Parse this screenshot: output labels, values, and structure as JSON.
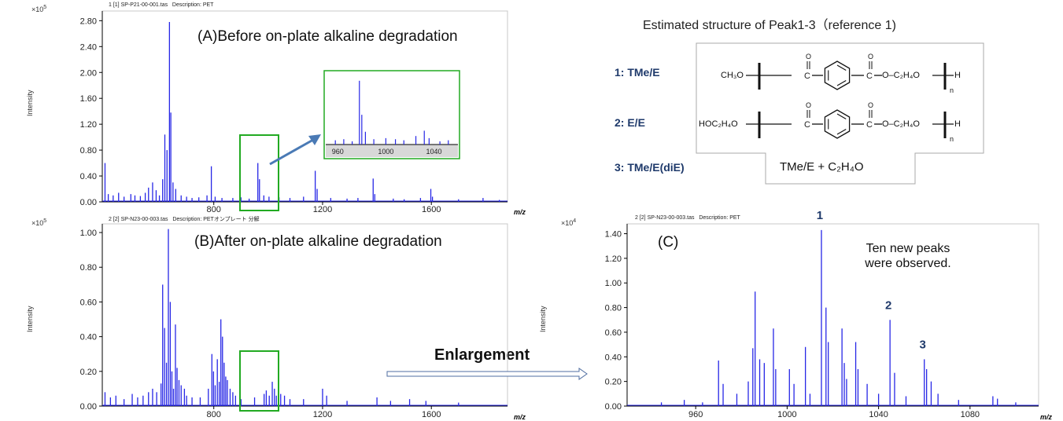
{
  "colors": {
    "peak": "#2727e6",
    "highlight_box": "#22aa22",
    "arrow": "#4a7ab5",
    "label": "#1f3a6b"
  },
  "panels": {
    "a": {
      "header": "1 [1] SP-P21-00-001.tas   Description: PET",
      "title": "(A)Before on-plate alkaline degradation",
      "multiplier": "×10",
      "multiplier_exp": "5",
      "ylabel": "Intensity",
      "xunit": "m/z"
    },
    "b": {
      "header": "2 [2] SP-N23-00-003.tas   Description: PETオンプレート 分解",
      "title": "(B)After on-plate alkaline degradation",
      "multiplier": "×10",
      "multiplier_exp": "5",
      "ylabel": "Intensity",
      "xunit": "m/z"
    },
    "c": {
      "header": "2 [2] SP-N23-00-003.tas   Description: PET",
      "title": "(C)",
      "multiplier": "×10",
      "multiplier_exp": "4",
      "ylabel": "Intensity",
      "xunit": "m/z",
      "note": "Ten new peaks were observed.",
      "peak_labels": [
        "1",
        "2",
        "3"
      ]
    }
  },
  "enlargement_label": "Enlargement",
  "structure": {
    "title": "Estimated structure of Peak1-3（reference 1)",
    "items": [
      {
        "label": "1: TMe/E"
      },
      {
        "label": "2: E/E"
      },
      {
        "label": "3: TMe/E(diE)"
      }
    ],
    "formula1_left": "CH₃O",
    "formula2_left": "HOC₂H₄O",
    "repeat_mid": "O–C₂H₄O",
    "end_h": "H",
    "subscript_n": "n",
    "carbonyl_o": "O",
    "formula3": "TMe/E  + C₂H₄O"
  },
  "chart_data": [
    {
      "id": "A",
      "type": "line",
      "title": "(A)Before on-plate alkaline degradation",
      "xlabel": "m/z",
      "ylabel": "Intensity",
      "y_multiplier": "×10^5",
      "xlim": [
        390,
        1880
      ],
      "ylim": [
        0,
        2.95
      ],
      "xticks": [
        800,
        1200,
        1600
      ],
      "yticks": [
        "0.00",
        "0.40",
        "0.80",
        "1.20",
        "1.60",
        "2.00",
        "2.40",
        "2.80"
      ],
      "peaks": [
        [
          400,
          0.6
        ],
        [
          412,
          0.12
        ],
        [
          430,
          0.1
        ],
        [
          450,
          0.14
        ],
        [
          470,
          0.08
        ],
        [
          495,
          0.12
        ],
        [
          510,
          0.1
        ],
        [
          530,
          0.09
        ],
        [
          548,
          0.14
        ],
        [
          560,
          0.22
        ],
        [
          575,
          0.3
        ],
        [
          588,
          0.18
        ],
        [
          600,
          0.1
        ],
        [
          612,
          0.35
        ],
        [
          620,
          1.04
        ],
        [
          628,
          0.8
        ],
        [
          637,
          2.78
        ],
        [
          642,
          1.38
        ],
        [
          650,
          0.3
        ],
        [
          660,
          0.2
        ],
        [
          680,
          0.1
        ],
        [
          700,
          0.08
        ],
        [
          720,
          0.06
        ],
        [
          745,
          0.07
        ],
        [
          775,
          0.1
        ],
        [
          791,
          0.55
        ],
        [
          805,
          0.08
        ],
        [
          830,
          0.06
        ],
        [
          870,
          0.06
        ],
        [
          900,
          0.07
        ],
        [
          930,
          0.05
        ],
        [
          962,
          0.6
        ],
        [
          968,
          0.35
        ],
        [
          984,
          0.1
        ],
        [
          1003,
          0.08
        ],
        [
          1040,
          0.07
        ],
        [
          1080,
          0.06
        ],
        [
          1130,
          0.08
        ],
        [
          1173,
          0.48
        ],
        [
          1180,
          0.2
        ],
        [
          1230,
          0.06
        ],
        [
          1290,
          0.05
        ],
        [
          1330,
          0.06
        ],
        [
          1386,
          0.36
        ],
        [
          1392,
          0.12
        ],
        [
          1460,
          0.05
        ],
        [
          1500,
          0.04
        ],
        [
          1560,
          0.06
        ],
        [
          1598,
          0.2
        ],
        [
          1604,
          0.08
        ],
        [
          1700,
          0.04
        ],
        [
          1790,
          0.06
        ],
        [
          1850,
          0.03
        ]
      ],
      "inset": {
        "xlim": [
          950,
          1060
        ],
        "xticks": [
          960,
          1000,
          1040
        ],
        "peaks": [
          [
            958,
            0.04
          ],
          [
            965,
            0.05
          ],
          [
            972,
            0.03
          ],
          [
            978,
            0.6
          ],
          [
            980,
            0.28
          ],
          [
            983,
            0.12
          ],
          [
            990,
            0.05
          ],
          [
            1000,
            0.06
          ],
          [
            1008,
            0.05
          ],
          [
            1015,
            0.04
          ],
          [
            1025,
            0.08
          ],
          [
            1032,
            0.13
          ],
          [
            1036,
            0.06
          ],
          [
            1045,
            0.03
          ],
          [
            1052,
            0.04
          ]
        ]
      }
    },
    {
      "id": "B",
      "type": "line",
      "title": "(B)After on-plate alkaline degradation",
      "xlabel": "m/z",
      "ylabel": "Intensity",
      "y_multiplier": "×10^5",
      "xlim": [
        390,
        1880
      ],
      "ylim": [
        0,
        1.05
      ],
      "xticks": [
        800,
        1200,
        1600
      ],
      "yticks": [
        "0.00",
        "0.20",
        "0.40",
        "0.60",
        "0.80",
        "1.00"
      ],
      "peaks": [
        [
          400,
          0.08
        ],
        [
          420,
          0.05
        ],
        [
          440,
          0.06
        ],
        [
          470,
          0.04
        ],
        [
          500,
          0.07
        ],
        [
          520,
          0.05
        ],
        [
          540,
          0.06
        ],
        [
          560,
          0.08
        ],
        [
          575,
          0.1
        ],
        [
          590,
          0.08
        ],
        [
          606,
          0.13
        ],
        [
          612,
          0.7
        ],
        [
          619,
          0.45
        ],
        [
          626,
          0.25
        ],
        [
          633,
          1.02
        ],
        [
          640,
          0.6
        ],
        [
          646,
          0.2
        ],
        [
          652,
          0.1
        ],
        [
          659,
          0.47
        ],
        [
          665,
          0.22
        ],
        [
          672,
          0.15
        ],
        [
          680,
          0.12
        ],
        [
          692,
          0.1
        ],
        [
          700,
          0.06
        ],
        [
          720,
          0.05
        ],
        [
          750,
          0.05
        ],
        [
          780,
          0.1
        ],
        [
          793,
          0.3
        ],
        [
          799,
          0.2
        ],
        [
          805,
          0.12
        ],
        [
          813,
          0.27
        ],
        [
          820,
          0.14
        ],
        [
          826,
          0.5
        ],
        [
          832,
          0.4
        ],
        [
          838,
          0.25
        ],
        [
          844,
          0.17
        ],
        [
          850,
          0.15
        ],
        [
          860,
          0.1
        ],
        [
          870,
          0.08
        ],
        [
          880,
          0.06
        ],
        [
          900,
          0.04
        ],
        [
          950,
          0.05
        ],
        [
          985,
          0.07
        ],
        [
          993,
          0.09
        ],
        [
          1004,
          0.06
        ],
        [
          1015,
          0.14
        ],
        [
          1023,
          0.1
        ],
        [
          1030,
          0.06
        ],
        [
          1046,
          0.07
        ],
        [
          1060,
          0.06
        ],
        [
          1080,
          0.04
        ],
        [
          1130,
          0.04
        ],
        [
          1200,
          0.1
        ],
        [
          1215,
          0.06
        ],
        [
          1290,
          0.03
        ],
        [
          1400,
          0.05
        ],
        [
          1450,
          0.03
        ],
        [
          1520,
          0.04
        ],
        [
          1580,
          0.03
        ],
        [
          1700,
          0.02
        ]
      ]
    },
    {
      "id": "C",
      "type": "line",
      "title": "(C)",
      "xlabel": "m/z",
      "ylabel": "Intensity",
      "y_multiplier": "×10^4",
      "xlim": [
        930,
        1110
      ],
      "ylim": [
        0,
        1.48
      ],
      "xticks": [
        960,
        1000,
        1040,
        1080
      ],
      "yticks": [
        "0.00",
        "0.20",
        "0.40",
        "0.60",
        "0.80",
        "1.00",
        "1.20",
        "1.40"
      ],
      "peaks": [
        [
          945,
          0.03
        ],
        [
          955,
          0.05
        ],
        [
          963,
          0.03
        ],
        [
          970,
          0.37
        ],
        [
          972,
          0.18
        ],
        [
          978,
          0.1
        ],
        [
          983,
          0.2
        ],
        [
          985,
          0.47
        ],
        [
          986,
          0.93
        ],
        [
          988,
          0.38
        ],
        [
          990,
          0.35
        ],
        [
          994,
          0.63
        ],
        [
          995,
          0.3
        ],
        [
          1001,
          0.3
        ],
        [
          1003,
          0.18
        ],
        [
          1008,
          0.48
        ],
        [
          1010,
          0.1
        ],
        [
          1015,
          1.43
        ],
        [
          1017,
          0.8
        ],
        [
          1018,
          0.52
        ],
        [
          1024,
          0.63
        ],
        [
          1025,
          0.35
        ],
        [
          1026,
          0.22
        ],
        [
          1030,
          0.52
        ],
        [
          1031,
          0.3
        ],
        [
          1035,
          0.18
        ],
        [
          1040,
          0.1
        ],
        [
          1045,
          0.7
        ],
        [
          1047,
          0.27
        ],
        [
          1052,
          0.08
        ],
        [
          1060,
          0.38
        ],
        [
          1061,
          0.3
        ],
        [
          1063,
          0.2
        ],
        [
          1066,
          0.1
        ],
        [
          1075,
          0.05
        ],
        [
          1090,
          0.08
        ],
        [
          1092,
          0.06
        ],
        [
          1100,
          0.03
        ]
      ],
      "annotations": [
        {
          "label": "1",
          "x": 1015,
          "y": 1.43
        },
        {
          "label": "2",
          "x": 1045,
          "y": 0.7
        },
        {
          "label": "3",
          "x": 1060,
          "y": 0.38
        }
      ]
    }
  ]
}
